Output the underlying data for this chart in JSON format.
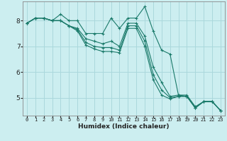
{
  "xlabel": "Humidex (Indice chaleur)",
  "bg_color": "#cceef0",
  "grid_color": "#aad8dc",
  "line_color": "#1a7a6a",
  "xlim": [
    -0.5,
    23.5
  ],
  "ylim": [
    4.3,
    8.75
  ],
  "xticks": [
    0,
    1,
    2,
    3,
    4,
    5,
    6,
    7,
    8,
    9,
    10,
    11,
    12,
    13,
    14,
    15,
    16,
    17,
    18,
    19,
    20,
    21,
    22,
    23
  ],
  "yticks": [
    5,
    6,
    7,
    8
  ],
  "lines": [
    [
      7.9,
      8.1,
      8.1,
      8.0,
      8.25,
      8.0,
      8.0,
      7.5,
      7.5,
      7.5,
      8.1,
      7.7,
      8.1,
      8.1,
      8.55,
      7.6,
      6.85,
      6.7,
      5.1,
      5.1,
      4.65,
      4.85,
      4.85,
      4.5
    ],
    [
      7.9,
      8.1,
      8.1,
      8.0,
      8.0,
      7.8,
      7.7,
      7.3,
      7.2,
      7.1,
      7.2,
      7.0,
      7.9,
      7.9,
      7.4,
      6.2,
      5.6,
      5.05,
      5.1,
      5.05,
      4.6,
      4.85,
      4.85,
      4.5
    ],
    [
      7.9,
      8.1,
      8.1,
      8.0,
      8.0,
      7.8,
      7.65,
      7.15,
      7.0,
      6.95,
      6.95,
      6.85,
      7.8,
      7.8,
      7.2,
      5.9,
      5.3,
      5.0,
      5.05,
      5.05,
      4.6,
      4.85,
      4.85,
      4.5
    ],
    [
      7.9,
      8.1,
      8.1,
      8.0,
      8.0,
      7.8,
      7.6,
      7.05,
      6.9,
      6.8,
      6.8,
      6.75,
      7.7,
      7.7,
      7.0,
      5.7,
      5.1,
      4.95,
      5.05,
      5.05,
      4.6,
      4.85,
      4.85,
      4.5
    ]
  ]
}
